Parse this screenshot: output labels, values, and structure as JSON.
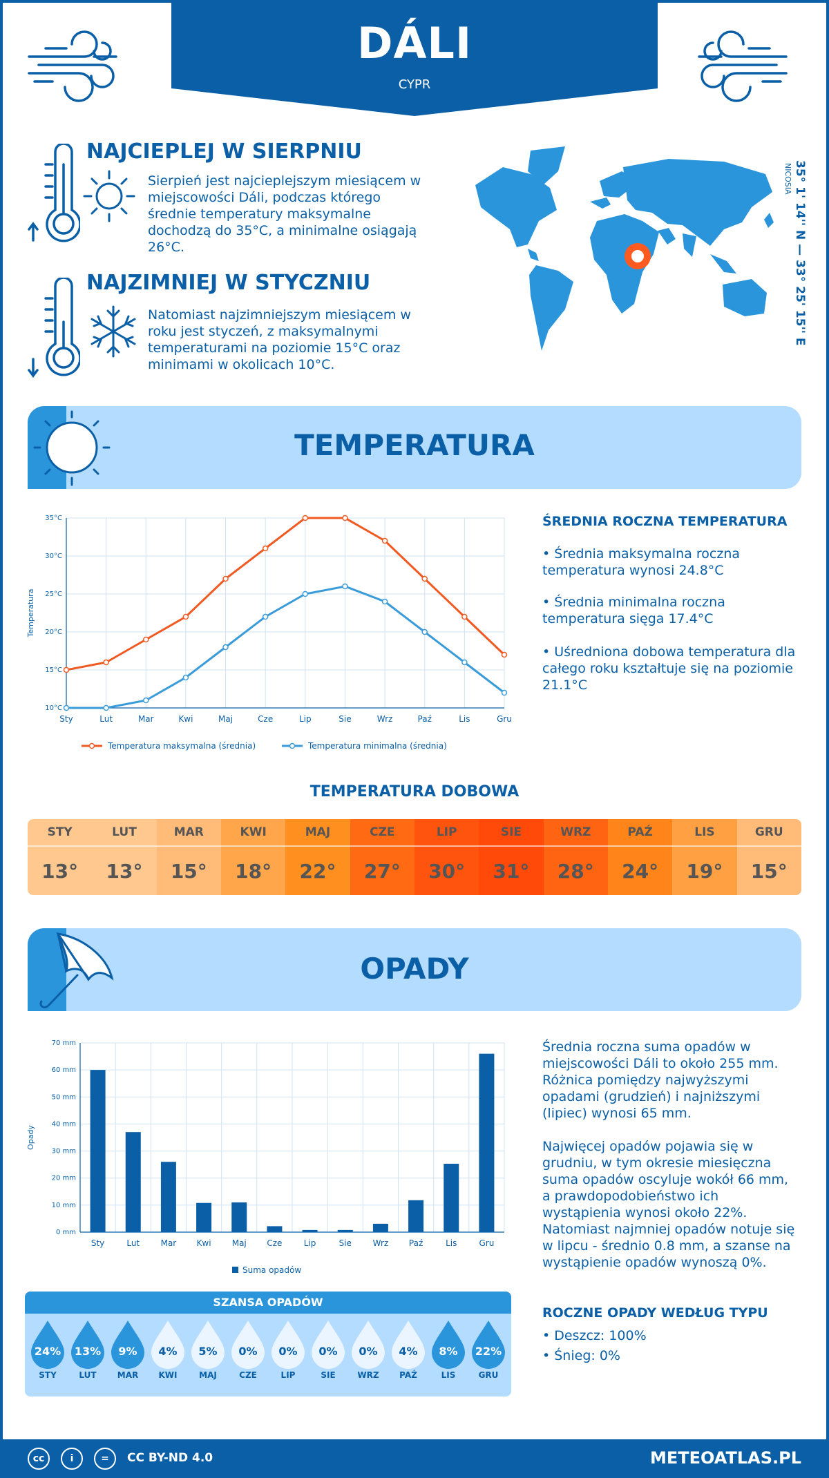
{
  "header": {
    "title": "DÁLI",
    "subtitle": "CYPR"
  },
  "hottest": {
    "heading": "NAJCIEPLEJ W SIERPNIU",
    "text": "Sierpień jest najcieplejszym miesiącem w miejscowości Dáli, podczas którego średnie temperatury maksymalne dochodzą do 35°C, a minimalne osiągają 26°C."
  },
  "coldest": {
    "heading": "NAJZIMNIEJ W STYCZNIU",
    "text": "Natomiast najzimniejszym miesiącem w roku jest styczeń, z maksymalnymi temperaturami na poziomie 15°C oraz minimami w okolicach 10°C."
  },
  "location": {
    "coords": "35° 1' 14'' N — 33° 25' 15'' E",
    "region": "NICOSIA"
  },
  "temperature_section": {
    "title": "TEMPERATURA",
    "side_heading": "ŚREDNIA ROCZNA TEMPERATURA",
    "bullets": [
      "• Średnia maksymalna roczna temperatura wynosi 24.8°C",
      "• Średnia minimalna roczna temperatura sięga 17.4°C",
      "• Uśredniona dobowa temperatura dla całego roku kształtuje się na poziomie 21.1°C"
    ],
    "daily_title": "TEMPERATURA DOBOWA",
    "daily": [
      {
        "month": "STY",
        "value": "13°",
        "color": "#ffc88f"
      },
      {
        "month": "LUT",
        "value": "13°",
        "color": "#ffc88f"
      },
      {
        "month": "MAR",
        "value": "15°",
        "color": "#ffbb77"
      },
      {
        "month": "KWI",
        "value": "18°",
        "color": "#ffa54a"
      },
      {
        "month": "MAJ",
        "value": "22°",
        "color": "#ff8f1f"
      },
      {
        "month": "CZE",
        "value": "27°",
        "color": "#ff6a12"
      },
      {
        "month": "LIP",
        "value": "30°",
        "color": "#ff540e"
      },
      {
        "month": "SIE",
        "value": "31°",
        "color": "#ff4a0a"
      },
      {
        "month": "WRZ",
        "value": "28°",
        "color": "#ff6412"
      },
      {
        "month": "PAŹ",
        "value": "24°",
        "color": "#ff8419"
      },
      {
        "month": "LIS",
        "value": "19°",
        "color": "#ffa042"
      },
      {
        "month": "GRU",
        "value": "15°",
        "color": "#ffbb77"
      }
    ]
  },
  "precip_section": {
    "title": "OPADY",
    "text1": "Średnia roczna suma opadów w miejscowości Dáli to około 255 mm. Różnica pomiędzy najwyższymi opadami (grudzień) i najniższymi (lipiec) wynosi 65 mm.",
    "text2": "Najwięcej opadów pojawia się w grudniu, w tym okresie miesięczna suma opadów oscyluje wokół 66 mm, a prawdopodobieństwo ich wystąpienia wynosi około 22%. Natomiast najmniej opadów notuje się w lipcu - średnio 0.8 mm, a szanse na wystąpienie opadów wynoszą 0%.",
    "type_heading": "ROCZNE OPADY WEDŁUG TYPU",
    "types": [
      "• Deszcz: 100%",
      "• Śnieg: 0%"
    ],
    "chance_title": "SZANSA OPADÓW",
    "chance": [
      {
        "month": "STY",
        "value": "24%",
        "level": "high"
      },
      {
        "month": "LUT",
        "value": "13%",
        "level": "high"
      },
      {
        "month": "MAR",
        "value": "9%",
        "level": "high"
      },
      {
        "month": "KWI",
        "value": "4%",
        "level": "low"
      },
      {
        "month": "MAJ",
        "value": "5%",
        "level": "low"
      },
      {
        "month": "CZE",
        "value": "0%",
        "level": "low"
      },
      {
        "month": "LIP",
        "value": "0%",
        "level": "low"
      },
      {
        "month": "SIE",
        "value": "0%",
        "level": "low"
      },
      {
        "month": "WRZ",
        "value": "0%",
        "level": "low"
      },
      {
        "month": "PAŹ",
        "value": "4%",
        "level": "low"
      },
      {
        "month": "LIS",
        "value": "8%",
        "level": "high"
      },
      {
        "month": "GRU",
        "value": "22%",
        "level": "high"
      }
    ]
  },
  "chart_data": [
    {
      "type": "line",
      "categories": [
        "Sty",
        "Lut",
        "Mar",
        "Kwi",
        "Maj",
        "Cze",
        "Lip",
        "Sie",
        "Wrz",
        "Paź",
        "Lis",
        "Gru"
      ],
      "ylabel": "Temperatura",
      "ylim": [
        10,
        35
      ],
      "yticks": [
        10,
        15,
        20,
        25,
        30,
        35
      ],
      "ytick_labels": [
        "10°C",
        "15°C",
        "20°C",
        "25°C",
        "30°C",
        "35°C"
      ],
      "grid": true,
      "legend": "bottom",
      "series": [
        {
          "name": "Temperatura maksymalna (średnia)",
          "color": "#f05a22",
          "values": [
            15,
            16,
            19,
            22,
            27,
            31,
            35,
            35,
            32,
            27,
            22,
            17
          ]
        },
        {
          "name": "Temperatura minimalna (średnia)",
          "color": "#3a9bd9",
          "values": [
            10,
            10,
            11,
            14,
            18,
            22,
            25,
            26,
            24,
            20,
            16,
            12
          ]
        }
      ]
    },
    {
      "type": "bar",
      "categories": [
        "Sty",
        "Lut",
        "Mar",
        "Kwi",
        "Maj",
        "Cze",
        "Lip",
        "Sie",
        "Wrz",
        "Paź",
        "Lis",
        "Gru"
      ],
      "ylabel": "Opady",
      "ylim": [
        0,
        70
      ],
      "yticks": [
        0,
        10,
        20,
        30,
        40,
        50,
        60,
        70
      ],
      "ytick_labels": [
        "0 mm",
        "10 mm",
        "20 mm",
        "30 mm",
        "40 mm",
        "50 mm",
        "60 mm",
        "70 mm"
      ],
      "grid": true,
      "legend": "bottom",
      "series": [
        {
          "name": "Suma opadów",
          "color": "#0a5fa6",
          "values": [
            60,
            37,
            26,
            10.8,
            11,
            2.2,
            0.8,
            0.8,
            3.1,
            11.8,
            25.3,
            66
          ]
        }
      ]
    }
  ],
  "footer": {
    "license": "CC BY-ND 4.0",
    "site": "METEOATLAS.PL",
    "icons": [
      "cc-icon",
      "person-icon",
      "equal-icon"
    ]
  }
}
